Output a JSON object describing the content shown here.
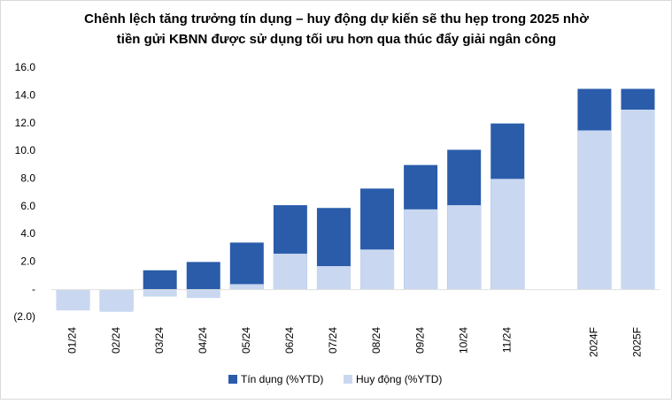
{
  "chart_data": {
    "type": "overlap-bar",
    "title": [
      "Chênh lệch tăng trưởng tín dụng – huy động dự kiến sẽ thu hẹp trong 2025 nhờ",
      "tiền gửi KBNN được sử dụng tối ưu hơn qua thúc đẩy giải ngân công"
    ],
    "categories": [
      "01/24",
      "02/24",
      "03/24",
      "04/24",
      "05/24",
      "06/24",
      "07/24",
      "08/24",
      "09/24",
      "10/24",
      "11/24",
      null,
      "2024F",
      "2025F"
    ],
    "series": [
      {
        "name": "Tín dụng (%YTD)",
        "color": "#2a5caa",
        "values": [
          -1.3,
          -1.5,
          1.4,
          2.0,
          3.4,
          6.1,
          5.9,
          7.3,
          9.0,
          10.1,
          12.0,
          null,
          14.5,
          14.5
        ]
      },
      {
        "name": "Huy động (%YTD)",
        "color": "#c9d8f0",
        "values": [
          -1.5,
          -1.6,
          -0.5,
          -0.6,
          0.4,
          2.6,
          1.7,
          2.9,
          5.8,
          6.1,
          8.0,
          null,
          11.5,
          13.0
        ]
      }
    ],
    "ylim": [
      -2,
      16
    ],
    "yticks": [
      {
        "value": -2,
        "label": "(2.0)"
      },
      {
        "value": 0,
        "label": "-"
      },
      {
        "value": 2,
        "label": "2.0"
      },
      {
        "value": 4,
        "label": "4.0"
      },
      {
        "value": 6,
        "label": "6.0"
      },
      {
        "value": 8,
        "label": "8.0"
      },
      {
        "value": 10,
        "label": "10.0"
      },
      {
        "value": 12,
        "label": "12.0"
      },
      {
        "value": 14,
        "label": "14.0"
      },
      {
        "value": 16,
        "label": "16.0"
      }
    ],
    "legend": "bottom"
  }
}
